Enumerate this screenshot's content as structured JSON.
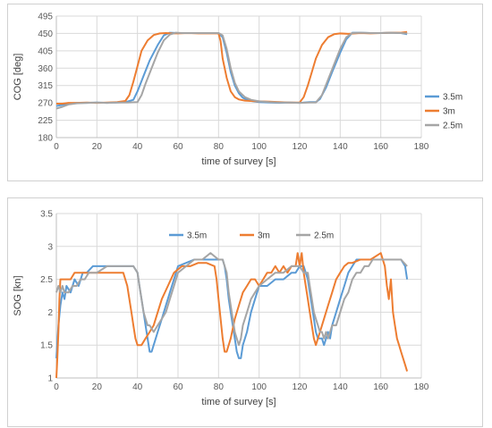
{
  "colors": {
    "s35": "#5b9bd5",
    "s3": "#ed7d31",
    "s25": "#a5a5a5",
    "grid": "#d9d9d9",
    "axis": "#bfbfbf"
  },
  "chart_data": [
    {
      "type": "line",
      "title": "",
      "xlabel": "time of survey [s]",
      "ylabel": "COG [deg]",
      "xlim": [
        0,
        180
      ],
      "ylim": [
        180,
        495
      ],
      "xticks": [
        0,
        20,
        40,
        60,
        80,
        100,
        120,
        140,
        160,
        180
      ],
      "yticks": [
        180,
        225,
        270,
        315,
        360,
        405,
        450,
        495
      ],
      "legend_position": "right",
      "series": [
        {
          "name": "3.5m",
          "color_key": "s35",
          "x": [
            0,
            3,
            6,
            10,
            15,
            20,
            25,
            30,
            34,
            38,
            40,
            43,
            46,
            50,
            53,
            56,
            60,
            65,
            70,
            75,
            80,
            82,
            84,
            86,
            88,
            90,
            92,
            95,
            100,
            105,
            110,
            115,
            120,
            125,
            128,
            130,
            133,
            136,
            140,
            143,
            146,
            150,
            155,
            160,
            165,
            170,
            173
          ],
          "y": [
            262,
            265,
            268,
            270,
            270,
            271,
            270,
            271,
            272,
            278,
            300,
            340,
            380,
            420,
            445,
            452,
            451,
            451,
            451,
            451,
            451,
            440,
            400,
            350,
            315,
            295,
            283,
            276,
            272,
            271,
            270,
            271,
            270,
            272,
            272,
            280,
            310,
            350,
            400,
            435,
            452,
            452,
            451,
            451,
            452,
            451,
            448
          ]
        },
        {
          "name": "3m",
          "color_key": "s3",
          "x": [
            0,
            3,
            6,
            10,
            15,
            20,
            25,
            30,
            34,
            36,
            38,
            40,
            42,
            45,
            48,
            51,
            54,
            57,
            60,
            65,
            70,
            75,
            80,
            81,
            82,
            84,
            86,
            88,
            90,
            93,
            96,
            100,
            105,
            110,
            115,
            120,
            122,
            124,
            126,
            128,
            131,
            134,
            137,
            140,
            144,
            150,
            155,
            160,
            165,
            170,
            173
          ],
          "y": [
            268,
            268,
            270,
            270,
            271,
            270,
            271,
            272,
            275,
            290,
            325,
            365,
            405,
            432,
            446,
            450,
            451,
            450,
            450,
            451,
            450,
            450,
            450,
            430,
            385,
            335,
            300,
            285,
            279,
            276,
            275,
            274,
            273,
            272,
            271,
            271,
            285,
            315,
            350,
            385,
            420,
            440,
            448,
            450,
            449,
            451,
            450,
            451,
            452,
            452,
            454
          ]
        },
        {
          "name": "2.5m",
          "color_key": "s25",
          "x": [
            0,
            3,
            6,
            10,
            15,
            20,
            25,
            30,
            35,
            40,
            42,
            44,
            47,
            50,
            53,
            56,
            59,
            62,
            65,
            70,
            75,
            80,
            82,
            84,
            86,
            88,
            90,
            93,
            96,
            100,
            105,
            110,
            115,
            120,
            125,
            128,
            131,
            134,
            137,
            140,
            143,
            146,
            150,
            155,
            160,
            165,
            170,
            173
          ],
          "y": [
            255,
            260,
            266,
            269,
            270,
            271,
            270,
            271,
            271,
            272,
            290,
            320,
            360,
            400,
            432,
            447,
            452,
            451,
            451,
            451,
            451,
            451,
            445,
            410,
            360,
            322,
            300,
            285,
            278,
            274,
            272,
            271,
            271,
            270,
            271,
            271,
            290,
            330,
            370,
            410,
            440,
            451,
            452,
            451,
            451,
            452,
            451,
            450
          ]
        }
      ]
    },
    {
      "type": "line",
      "title": "",
      "xlabel": "time of survey [s]",
      "ylabel": "SOG [kn]",
      "xlim": [
        0,
        180
      ],
      "ylim": [
        1,
        3.5
      ],
      "xticks": [
        0,
        20,
        40,
        60,
        80,
        100,
        120,
        140,
        160,
        180
      ],
      "yticks": [
        1,
        1.5,
        2,
        2.5,
        3,
        3.5
      ],
      "legend_position": "top",
      "series": [
        {
          "name": "3.5m",
          "color_key": "s35",
          "x": [
            0,
            1,
            2,
            3,
            4,
            5,
            7,
            9,
            11,
            13,
            15,
            18,
            20,
            24,
            28,
            32,
            36,
            38,
            40,
            41,
            42,
            43,
            44,
            45,
            46,
            47,
            48,
            50,
            52,
            54,
            56,
            58,
            60,
            64,
            68,
            72,
            76,
            78,
            80,
            82,
            83,
            84,
            85,
            86,
            87,
            88,
            89,
            90,
            91,
            92,
            94,
            96,
            98,
            100,
            104,
            108,
            112,
            116,
            118,
            120,
            122,
            123,
            124,
            125,
            126,
            127,
            128,
            129,
            130,
            131,
            132,
            133,
            134,
            135,
            136,
            138,
            140,
            142,
            144,
            146,
            148,
            150,
            155,
            160,
            165,
            170,
            172,
            173
          ],
          "y": [
            1.3,
            1.8,
            2.1,
            2.3,
            2.2,
            2.4,
            2.3,
            2.5,
            2.4,
            2.6,
            2.6,
            2.7,
            2.7,
            2.7,
            2.7,
            2.7,
            2.7,
            2.7,
            2.6,
            2.4,
            2.2,
            2.0,
            1.8,
            1.6,
            1.4,
            1.4,
            1.5,
            1.7,
            1.9,
            2.1,
            2.3,
            2.5,
            2.7,
            2.75,
            2.8,
            2.8,
            2.8,
            2.8,
            2.8,
            2.8,
            2.7,
            2.5,
            2.2,
            2.0,
            1.8,
            1.6,
            1.4,
            1.3,
            1.3,
            1.5,
            1.7,
            2.0,
            2.2,
            2.4,
            2.4,
            2.5,
            2.5,
            2.6,
            2.6,
            2.7,
            2.7,
            2.6,
            2.5,
            2.3,
            2.1,
            1.9,
            1.7,
            1.6,
            1.6,
            1.6,
            1.5,
            1.6,
            1.7,
            1.6,
            1.8,
            2.0,
            2.2,
            2.4,
            2.6,
            2.7,
            2.8,
            2.8,
            2.8,
            2.8,
            2.8,
            2.8,
            2.7,
            2.5
          ]
        },
        {
          "name": "3m",
          "color_key": "s3",
          "x": [
            0,
            0.5,
            1,
            1.5,
            2,
            3,
            5,
            7,
            9,
            11,
            13,
            15,
            17,
            20,
            25,
            30,
            33,
            35,
            36,
            37,
            38,
            39,
            40,
            42,
            44,
            46,
            48,
            50,
            52,
            55,
            58,
            62,
            66,
            70,
            74,
            78,
            79,
            80,
            81,
            82,
            83,
            84,
            86,
            88,
            90,
            92,
            94,
            96,
            98,
            100,
            102,
            104,
            106,
            108,
            110,
            112,
            114,
            116,
            118,
            119,
            120,
            121,
            122,
            123,
            124,
            125,
            126,
            127,
            128,
            129,
            130,
            132,
            134,
            136,
            138,
            140,
            142,
            144,
            146,
            150,
            155,
            160,
            162,
            163,
            164,
            165,
            166,
            167,
            168,
            169,
            170,
            171,
            172,
            173
          ],
          "y": [
            1.0,
            1.3,
            1.7,
            2.2,
            2.5,
            2.5,
            2.5,
            2.5,
            2.6,
            2.6,
            2.6,
            2.6,
            2.6,
            2.6,
            2.6,
            2.6,
            2.6,
            2.4,
            2.2,
            2.0,
            1.8,
            1.6,
            1.5,
            1.5,
            1.6,
            1.7,
            1.8,
            2.0,
            2.2,
            2.4,
            2.6,
            2.7,
            2.7,
            2.75,
            2.75,
            2.7,
            2.5,
            2.2,
            1.9,
            1.6,
            1.4,
            1.4,
            1.6,
            1.9,
            2.1,
            2.3,
            2.4,
            2.5,
            2.5,
            2.4,
            2.5,
            2.6,
            2.6,
            2.7,
            2.6,
            2.7,
            2.6,
            2.7,
            2.7,
            2.9,
            2.7,
            2.9,
            2.6,
            2.4,
            2.2,
            2.0,
            1.8,
            1.6,
            1.5,
            1.6,
            1.7,
            1.9,
            2.1,
            2.3,
            2.5,
            2.6,
            2.7,
            2.75,
            2.75,
            2.8,
            2.8,
            2.9,
            2.7,
            2.4,
            2.2,
            2.5,
            2.0,
            1.8,
            1.6,
            1.5,
            1.4,
            1.3,
            1.2,
            1.1
          ]
        },
        {
          "name": "2.5m",
          "color_key": "s25",
          "x": [
            0,
            1,
            2,
            3,
            4,
            6,
            8,
            10,
            12,
            14,
            16,
            18,
            20,
            25,
            30,
            35,
            38,
            40,
            41,
            42,
            43,
            44,
            45,
            46,
            48,
            50,
            52,
            54,
            56,
            58,
            60,
            64,
            68,
            72,
            76,
            80,
            82,
            84,
            85,
            86,
            87,
            88,
            89,
            90,
            91,
            92,
            94,
            96,
            98,
            100,
            104,
            108,
            112,
            116,
            120,
            122,
            124,
            125,
            126,
            127,
            128,
            129,
            130,
            131,
            132,
            133,
            134,
            135,
            136,
            138,
            140,
            142,
            144,
            146,
            148,
            150,
            152,
            154,
            156,
            160,
            165,
            170,
            173
          ],
          "y": [
            2.3,
            2.4,
            2.3,
            2.4,
            2.3,
            2.3,
            2.4,
            2.4,
            2.5,
            2.5,
            2.6,
            2.6,
            2.6,
            2.7,
            2.7,
            2.7,
            2.7,
            2.6,
            2.4,
            2.2,
            2.0,
            1.9,
            1.8,
            1.8,
            1.7,
            1.8,
            1.9,
            2.0,
            2.2,
            2.4,
            2.6,
            2.7,
            2.8,
            2.8,
            2.9,
            2.8,
            2.8,
            2.6,
            2.3,
            2.1,
            1.9,
            1.7,
            1.6,
            1.5,
            1.6,
            1.8,
            2.0,
            2.2,
            2.3,
            2.4,
            2.5,
            2.6,
            2.6,
            2.7,
            2.7,
            2.6,
            2.6,
            2.4,
            2.2,
            2.0,
            1.9,
            1.8,
            1.7,
            1.7,
            1.6,
            1.7,
            1.6,
            1.7,
            1.8,
            1.8,
            2.0,
            2.2,
            2.3,
            2.5,
            2.6,
            2.6,
            2.7,
            2.7,
            2.8,
            2.8,
            2.8,
            2.8,
            2.7
          ]
        }
      ]
    }
  ]
}
